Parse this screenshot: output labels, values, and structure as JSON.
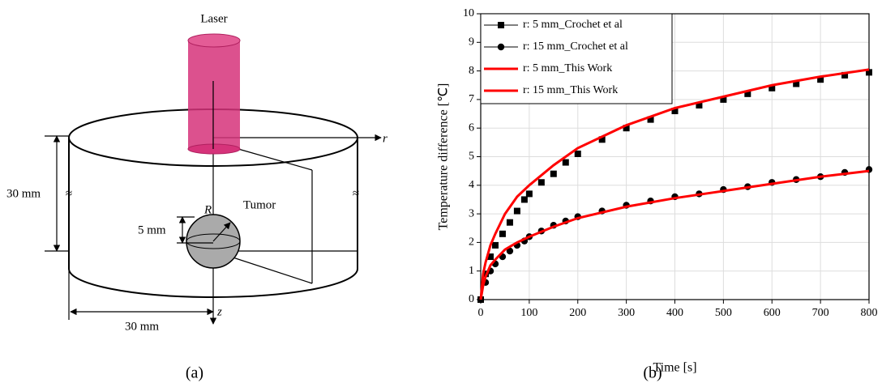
{
  "figure": {
    "panel_a": {
      "laser": "Laser",
      "r_axis": "r",
      "z_axis": "z",
      "radius": "R",
      "tumor": "Tumor",
      "depth": "5 mm",
      "height": "30 mm",
      "width": "30 mm"
    },
    "caption_a": "(a)",
    "caption_b": "(b)"
  },
  "chart_data": {
    "type": "line",
    "x_label": "Time [s]",
    "y_label": "Temperature difference [℃]",
    "xlim": [
      0,
      800
    ],
    "xticks": [
      0,
      100,
      200,
      300,
      400,
      500,
      600,
      700,
      800
    ],
    "ylim": [
      0,
      10
    ],
    "yticks": [
      0,
      1,
      2,
      3,
      4,
      5,
      6,
      7,
      8,
      9,
      10
    ],
    "grid": true,
    "legend": "upper left",
    "series": [
      {
        "name": "r: 5 mm_Crochet et al",
        "color": "#000000",
        "marker": "square",
        "x": [
          0,
          10,
          20,
          30,
          45,
          60,
          75,
          90,
          100,
          125,
          150,
          175,
          200,
          250,
          300,
          350,
          400,
          450,
          500,
          550,
          600,
          650,
          700,
          750,
          800
        ],
        "values": [
          0,
          0.9,
          1.5,
          1.9,
          2.3,
          2.7,
          3.1,
          3.5,
          3.7,
          4.1,
          4.4,
          4.8,
          5.1,
          5.6,
          6.0,
          6.3,
          6.6,
          6.8,
          7.0,
          7.2,
          7.4,
          7.55,
          7.7,
          7.85,
          7.95
        ]
      },
      {
        "name": "r: 15 mm_Crochet et al",
        "color": "#000000",
        "marker": "circle",
        "x": [
          0,
          10,
          20,
          30,
          45,
          60,
          75,
          90,
          100,
          125,
          150,
          175,
          200,
          250,
          300,
          350,
          400,
          450,
          500,
          550,
          600,
          650,
          700,
          750,
          800
        ],
        "values": [
          0,
          0.6,
          1.0,
          1.25,
          1.5,
          1.7,
          1.9,
          2.05,
          2.2,
          2.4,
          2.6,
          2.75,
          2.9,
          3.1,
          3.3,
          3.45,
          3.6,
          3.7,
          3.85,
          3.95,
          4.1,
          4.2,
          4.3,
          4.45,
          4.55
        ]
      },
      {
        "name": "r: 5 mm_This Work",
        "color": "#ff0000",
        "marker": "none",
        "x": [
          0,
          5,
          10,
          20,
          30,
          50,
          75,
          100,
          150,
          200,
          300,
          400,
          500,
          600,
          700,
          800
        ],
        "values": [
          0,
          0.9,
          1.3,
          1.9,
          2.3,
          3.0,
          3.6,
          4.0,
          4.7,
          5.3,
          6.1,
          6.7,
          7.1,
          7.5,
          7.8,
          8.05
        ]
      },
      {
        "name": "r: 15 mm_This Work",
        "color": "#ff0000",
        "marker": "none",
        "x": [
          0,
          5,
          10,
          20,
          30,
          50,
          75,
          100,
          150,
          200,
          300,
          400,
          500,
          600,
          700,
          800
        ],
        "values": [
          0,
          0.5,
          0.8,
          1.2,
          1.4,
          1.75,
          2.0,
          2.2,
          2.55,
          2.85,
          3.25,
          3.55,
          3.8,
          4.05,
          4.3,
          4.5
        ]
      }
    ]
  }
}
